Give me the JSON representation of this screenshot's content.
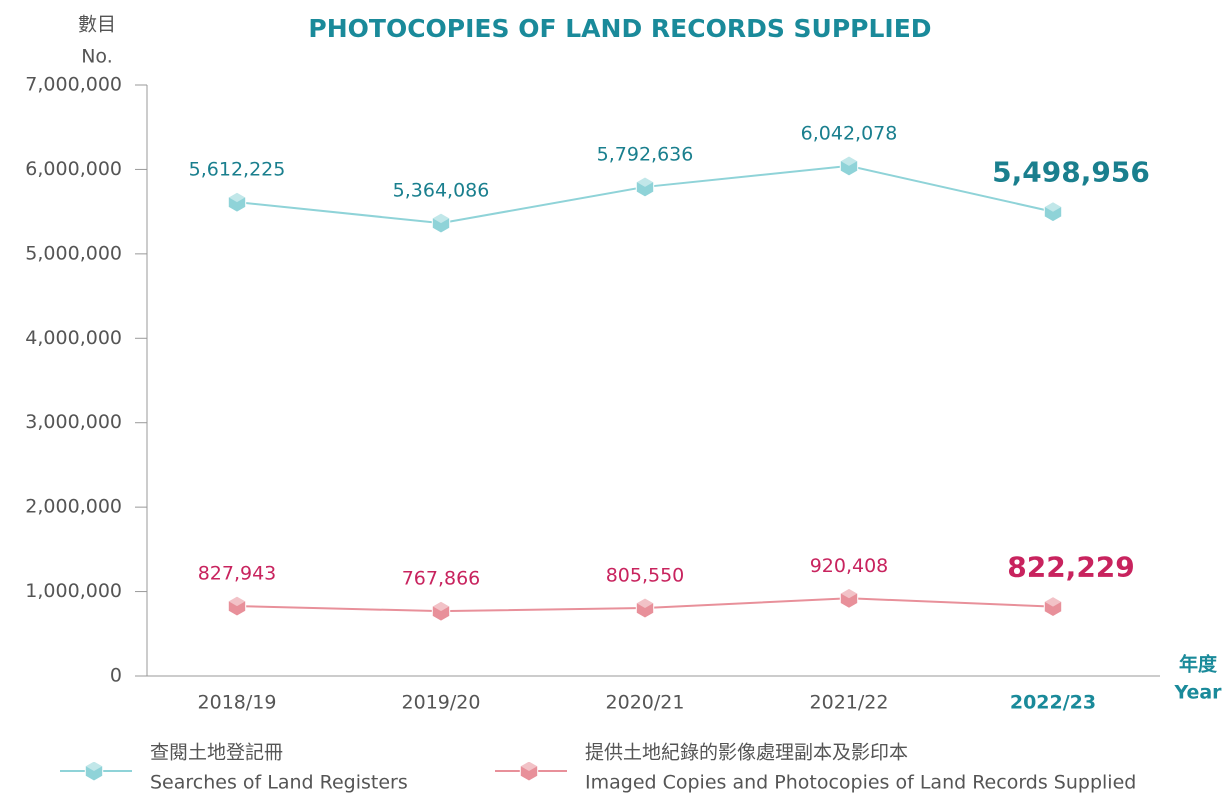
{
  "chart_data": {
    "type": "line",
    "title": "PHOTOCOPIES OF LAND RECORDS SUPPLIED",
    "y_label": [
      "數目",
      "No."
    ],
    "x_label": [
      "年度",
      "Year"
    ],
    "categories": [
      "2018/19",
      "2019/20",
      "2020/21",
      "2021/22",
      "2022/23"
    ],
    "emphasize_last": true,
    "series": [
      {
        "name": [
          "查閱土地登記冊",
          "Searches of Land Registers"
        ],
        "color": "#8fd3d8",
        "label_color": "#1a7f8e",
        "values": [
          5612225,
          5364086,
          5792636,
          6042078,
          5498956
        ],
        "value_labels": [
          "5,612,225",
          "5,364,086",
          "5,792,636",
          "6,042,078",
          "5,498,956"
        ]
      },
      {
        "name": [
          "提供土地紀錄的影像處理副本及影印本",
          "Imaged Copies and Photocopies of Land Records Supplied"
        ],
        "color": "#e8909a",
        "label_color": "#c8235e",
        "values": [
          827943,
          767866,
          805550,
          920408,
          822229
        ],
        "value_labels": [
          "827,943",
          "767,866",
          "805,550",
          "920,408",
          "822,229"
        ]
      }
    ],
    "ylim": [
      0,
      7000000
    ],
    "yticks": [
      0,
      {
        "value": 1000000,
        "label": "1,000,000"
      },
      {
        "value": 2000000,
        "label": "2,000,000"
      },
      {
        "value": 3000000,
        "label": "3,000,000"
      },
      {
        "value": 4000000,
        "label": "4,000,000"
      },
      {
        "value": 5000000,
        "label": "5,000,000"
      },
      {
        "value": 6000000,
        "label": "6,000,000"
      },
      {
        "value": 7000000,
        "label": "7,000,000"
      }
    ]
  }
}
